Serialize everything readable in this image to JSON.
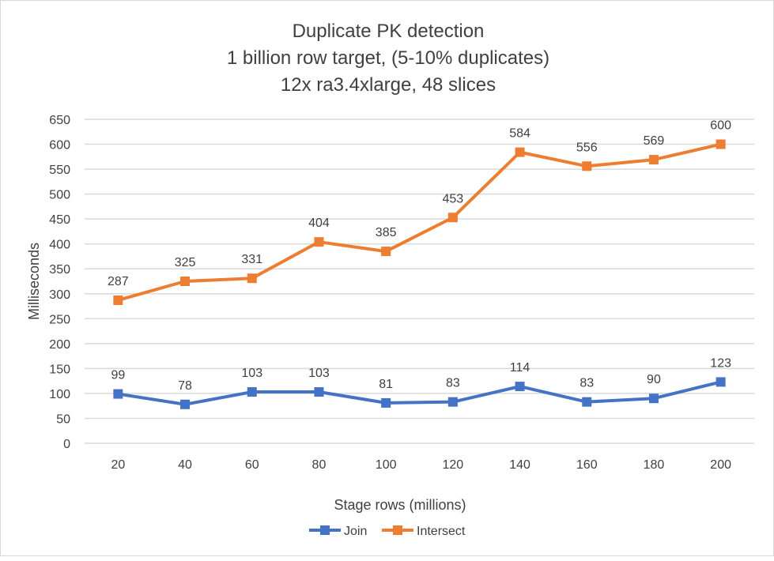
{
  "chart_data": {
    "type": "line",
    "title": [
      "Duplicate PK detection",
      "1 billion row target, (5-10% duplicates)",
      "12x ra3.4xlarge, 48 slices"
    ],
    "xlabel": "Stage rows (millions)",
    "ylabel": "Milliseconds",
    "categories": [
      "20",
      "40",
      "60",
      "80",
      "100",
      "120",
      "140",
      "160",
      "180",
      "200"
    ],
    "ylim": [
      0,
      650
    ],
    "yticks": [
      0,
      50,
      100,
      150,
      200,
      250,
      300,
      350,
      400,
      450,
      500,
      550,
      600,
      650
    ],
    "grid": true,
    "legend": "bottom",
    "series": [
      {
        "name": "Join",
        "color": "#4472c4",
        "values": [
          99,
          78,
          103,
          103,
          81,
          83,
          114,
          83,
          90,
          123
        ]
      },
      {
        "name": "Intersect",
        "color": "#ed7d31",
        "values": [
          287,
          325,
          331,
          404,
          385,
          453,
          584,
          556,
          569,
          600
        ]
      }
    ]
  }
}
